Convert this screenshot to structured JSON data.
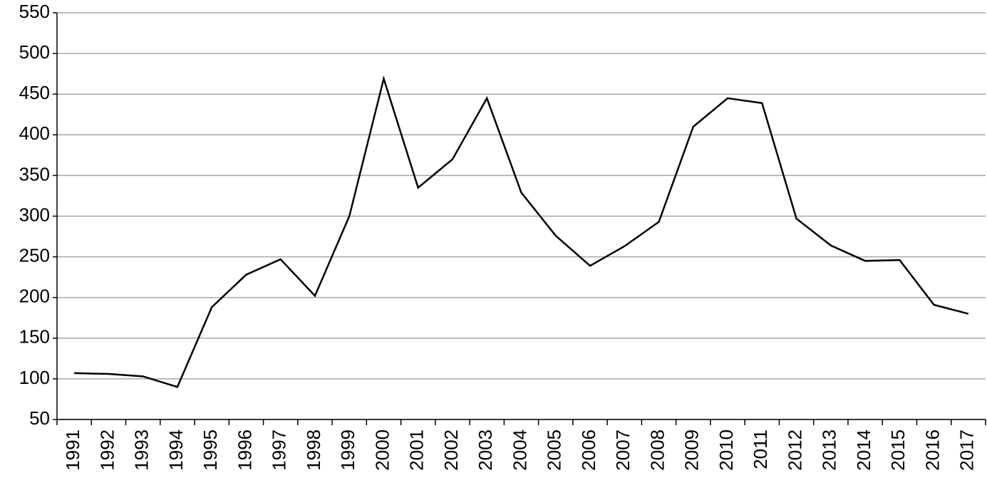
{
  "chart_data": {
    "type": "line",
    "categories": [
      "1991",
      "1992",
      "1993",
      "1994",
      "1995",
      "1996",
      "1997",
      "1998",
      "1999",
      "2000",
      "2001",
      "2002",
      "2003",
      "2004",
      "2005",
      "2006",
      "2007",
      "2008",
      "2009",
      "2010",
      "2011",
      "2012",
      "2013",
      "2014",
      "2015",
      "2016",
      "2017"
    ],
    "values": [
      107,
      106,
      103,
      90,
      188,
      228,
      247,
      202,
      300,
      469,
      335,
      370,
      445,
      329,
      276,
      239,
      263,
      293,
      410,
      445,
      439,
      297,
      264,
      245,
      246,
      191,
      180
    ],
    "color": "#000000",
    "ylim": [
      50,
      550
    ],
    "yticks": [
      50,
      100,
      150,
      200,
      250,
      300,
      350,
      400,
      450,
      500,
      550
    ],
    "grid": true
  }
}
